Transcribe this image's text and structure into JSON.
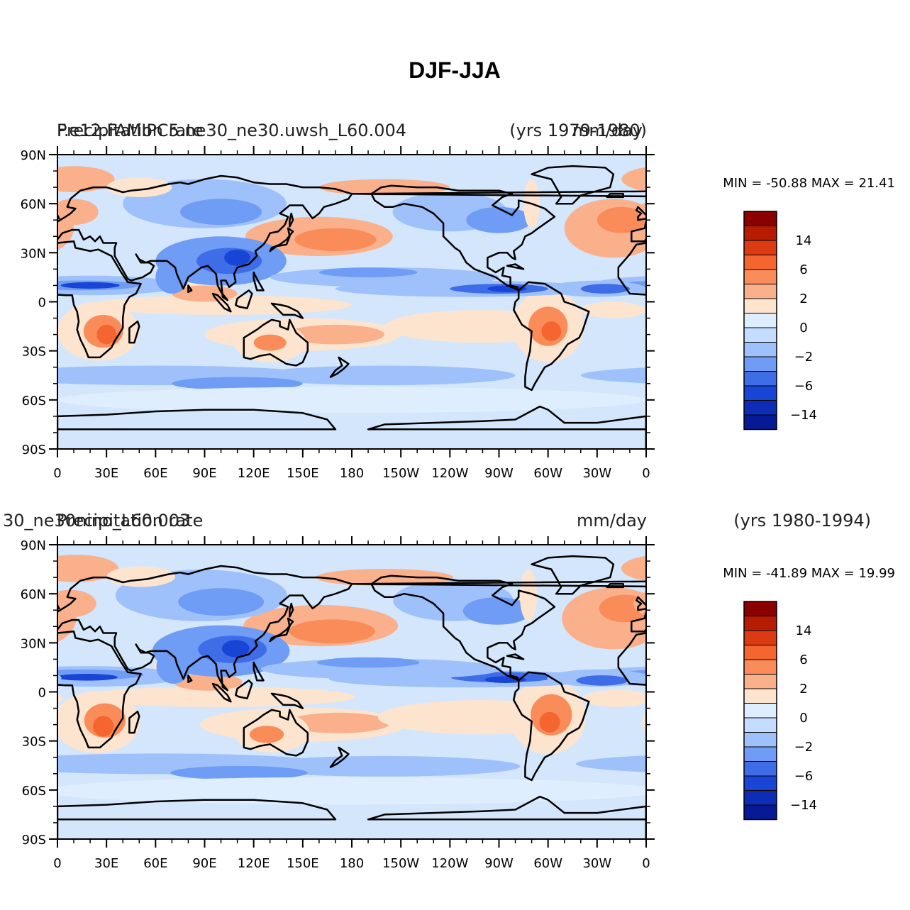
{
  "title": "DJF-JJA",
  "panels": [
    {
      "left_label": "Precipitation rate",
      "left_label_overlap": "F.e12.FAMIPC5.ne30_ne30.uwsh_L60.004",
      "center_right_label": "mm/day",
      "years": "(yrs 1979-1980)",
      "min_max": "MIN = -50.88  MAX =  21.41"
    },
    {
      "left_label": "Precipitation rate",
      "left_label_overlap": "30_ne30nino_L60.003",
      "center_right_label": "mm/day",
      "years": "(yrs 1980-1994)",
      "min_max": "MIN = -41.89  MAX =  19.99"
    }
  ],
  "lat_labels": [
    "90N",
    "60N",
    "30N",
    "0",
    "30S",
    "60S",
    "90S"
  ],
  "lon_labels": [
    "0",
    "30E",
    "60E",
    "90E",
    "120E",
    "150E",
    "180",
    "150W",
    "120W",
    "90W",
    "60W",
    "30W",
    "0"
  ],
  "colorbar": {
    "labels": [
      "14",
      "6",
      "2",
      "0",
      "-2",
      "-6",
      "-14"
    ],
    "colors": [
      "#8b0000",
      "#b81c00",
      "#dc3a12",
      "#f5652f",
      "#fa8c5a",
      "#fbb08c",
      "#fde4cf",
      "#dfeeff",
      "#c4dcff",
      "#9ec1fb",
      "#6f9cf4",
      "#3f6de8",
      "#1845d6",
      "#0e2db6",
      "#061a96"
    ]
  },
  "fields": {
    "ocean": "#d3e6fb"
  }
}
